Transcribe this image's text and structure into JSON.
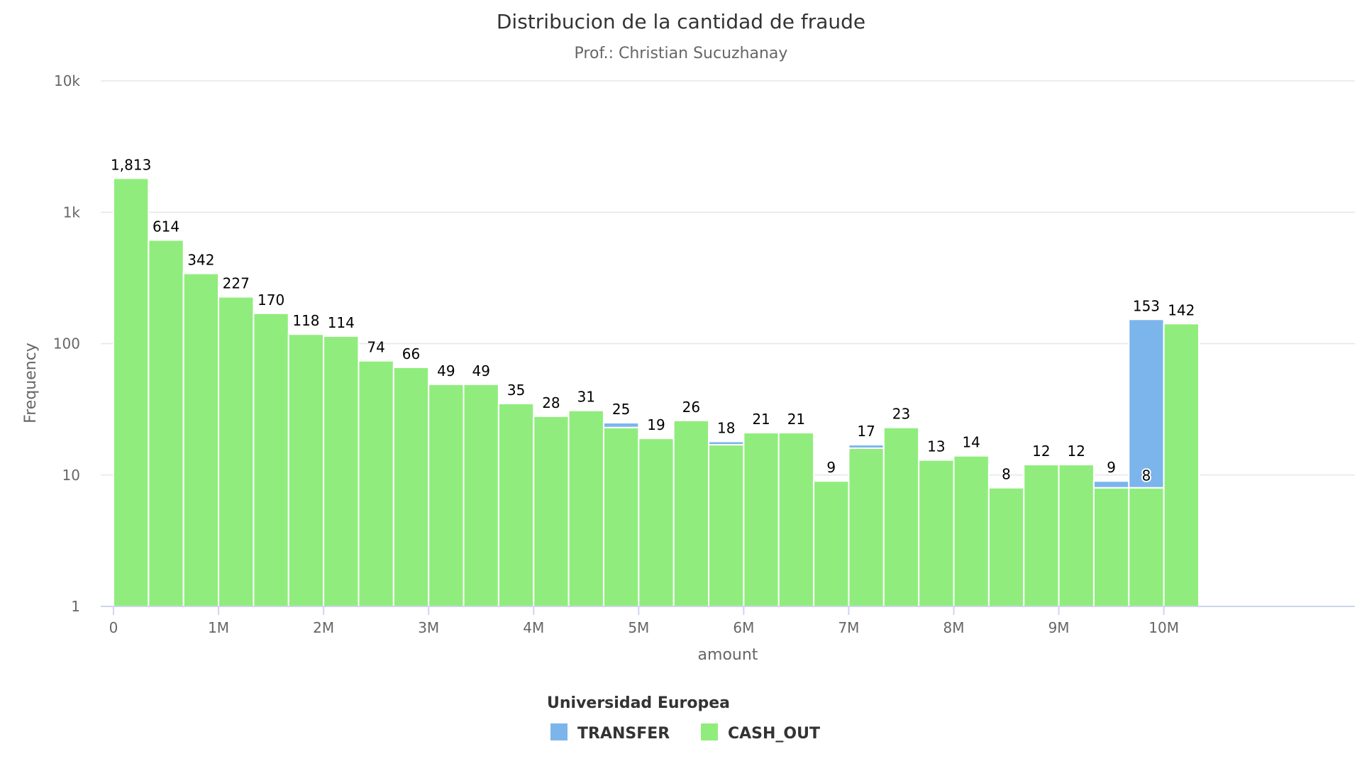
{
  "chart_data": {
    "type": "bar",
    "stacking": "normal",
    "title": "Distribucion de la cantidad de fraude",
    "subtitle": "Prof.: Christian Sucuzhanay",
    "xlabel": "amount",
    "ylabel": "Frequency",
    "y_scale": "log",
    "ylim": [
      1,
      10000
    ],
    "y_ticks": [
      {
        "value": 1,
        "label": "1"
      },
      {
        "value": 10,
        "label": "10"
      },
      {
        "value": 100,
        "label": "100"
      },
      {
        "value": 1000,
        "label": "1k"
      },
      {
        "value": 10000,
        "label": "10k"
      }
    ],
    "xlim": [
      0,
      10333333
    ],
    "x_ticks": [
      {
        "value": 0,
        "label": "0"
      },
      {
        "value": 1000000,
        "label": "1M"
      },
      {
        "value": 2000000,
        "label": "2M"
      },
      {
        "value": 3000000,
        "label": "3M"
      },
      {
        "value": 4000000,
        "label": "4M"
      },
      {
        "value": 5000000,
        "label": "5M"
      },
      {
        "value": 6000000,
        "label": "6M"
      },
      {
        "value": 7000000,
        "label": "7M"
      },
      {
        "value": 8000000,
        "label": "8M"
      },
      {
        "value": 9000000,
        "label": "9M"
      },
      {
        "value": 10000000,
        "label": "10M"
      }
    ],
    "bin_width": 333333,
    "grid": true,
    "legend": {
      "title": "Universidad Europea",
      "position": "bottom-center"
    },
    "series": [
      {
        "name": "TRANSFER",
        "color": "#7cb5ec",
        "values": [
          0,
          0,
          0,
          0,
          0,
          0,
          0,
          0,
          0,
          0,
          0,
          0,
          0,
          0,
          2,
          0,
          0,
          1,
          0,
          0,
          0,
          1,
          0,
          0,
          0,
          0,
          0,
          0,
          1,
          145,
          0
        ]
      },
      {
        "name": "CASH_OUT",
        "color": "#90ed7d",
        "values": [
          1813,
          614,
          342,
          227,
          170,
          118,
          114,
          74,
          66,
          49,
          49,
          35,
          28,
          31,
          23,
          19,
          26,
          17,
          21,
          21,
          9,
          16,
          23,
          13,
          14,
          8,
          12,
          12,
          8,
          8,
          142
        ]
      }
    ],
    "data_labels": [
      "1,813",
      "614",
      "342",
      "227",
      "170",
      "118",
      "114",
      "74",
      "66",
      "49",
      "49",
      "35",
      "28",
      "31",
      "25",
      "19",
      "26",
      "18",
      "21",
      "21",
      "9",
      "17",
      "23",
      "13",
      "14",
      "8",
      "12",
      "12",
      "9",
      "153",
      "142"
    ],
    "inner_labels": [
      {
        "bin": 29,
        "text": "8"
      }
    ]
  }
}
